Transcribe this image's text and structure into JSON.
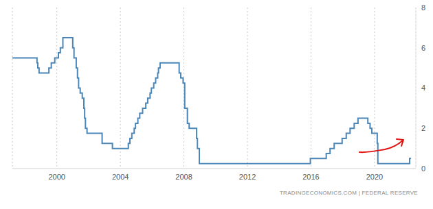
{
  "chart_data": {
    "type": "line",
    "annotations": [
      "TRADINGECONOMICS.COM | FEDERAL RESERVE"
    ],
    "line_style": "step",
    "color": "#4b86b8",
    "grid": "x",
    "xlim": [
      1997.2,
      2022.6
    ],
    "xticks": [
      2000,
      2004,
      2008,
      2012,
      2016,
      2020
    ],
    "ylim": [
      0,
      8
    ],
    "yticks": [
      0,
      2,
      4,
      6,
      8
    ],
    "x": [
      1997.2,
      1998.75,
      1998.8,
      1998.88,
      1999.5,
      1999.65,
      1999.87,
      2000.1,
      2000.22,
      2000.38,
      2001.0,
      2001.08,
      2001.22,
      2001.3,
      2001.37,
      2001.47,
      2001.6,
      2001.7,
      2001.75,
      2001.8,
      2001.9,
      2002.85,
      2003.5,
      2004.5,
      2004.6,
      2004.72,
      2004.87,
      2004.95,
      2005.1,
      2005.22,
      2005.4,
      2005.6,
      2005.72,
      2005.87,
      2005.95,
      2006.1,
      2006.22,
      2006.35,
      2006.4,
      2006.5,
      2007.7,
      2007.8,
      2007.95,
      2008.05,
      2008.22,
      2008.33,
      2008.8,
      2008.85,
      2008.97,
      2015.96,
      2016.96,
      2017.2,
      2017.46,
      2017.96,
      2018.22,
      2018.46,
      2018.72,
      2018.96,
      2019.58,
      2019.72,
      2019.83,
      2020.17,
      2020.21,
      2022.21,
      2022.3
    ],
    "values": [
      5.5,
      5.25,
      5.0,
      4.75,
      5.0,
      5.25,
      5.5,
      5.75,
      6.0,
      6.5,
      6.0,
      5.5,
      5.0,
      4.5,
      4.0,
      3.75,
      3.5,
      3.0,
      2.5,
      2.0,
      1.75,
      1.25,
      1.0,
      1.25,
      1.5,
      1.75,
      2.0,
      2.25,
      2.5,
      2.75,
      3.0,
      3.25,
      3.5,
      3.75,
      4.0,
      4.25,
      4.5,
      4.75,
      5.0,
      5.25,
      4.75,
      4.5,
      4.25,
      3.0,
      2.25,
      2.0,
      1.5,
      1.0,
      0.25,
      0.5,
      0.75,
      1.0,
      1.25,
      1.5,
      1.75,
      2.0,
      2.25,
      2.5,
      2.25,
      2.0,
      1.75,
      1.25,
      0.25,
      0.5,
      0.5
    ]
  }
}
